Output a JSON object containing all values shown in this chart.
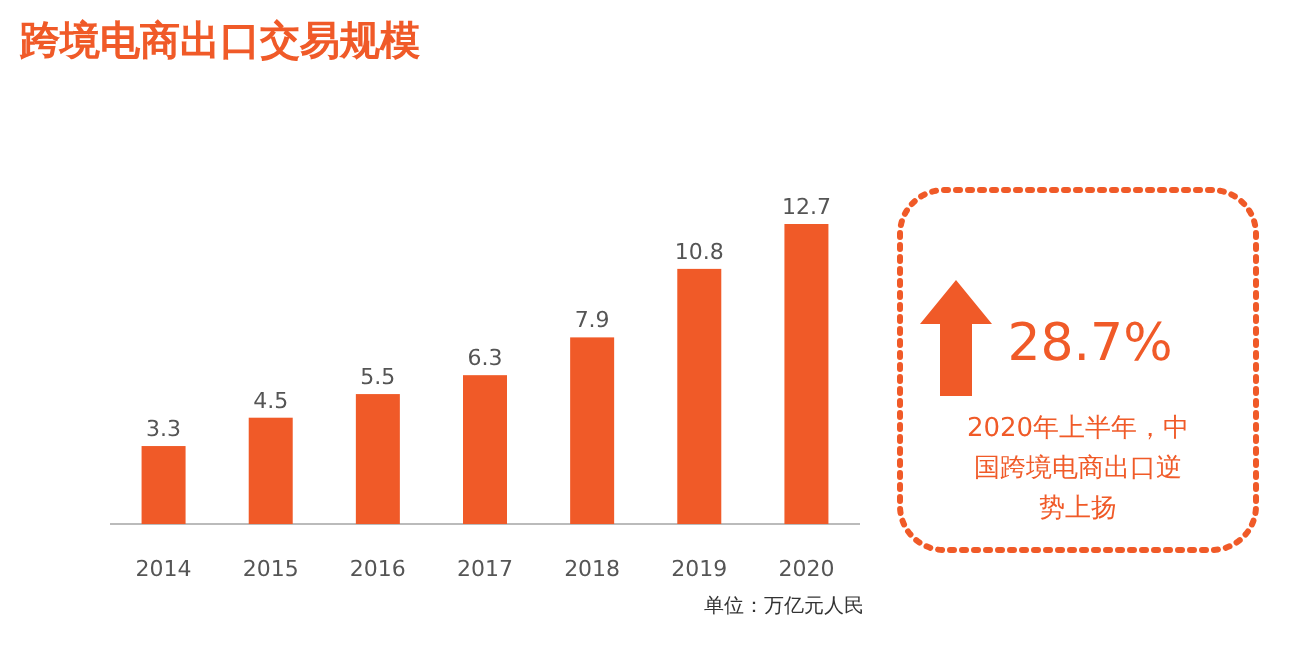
{
  "chart_data": {
    "type": "bar",
    "title": "跨境电商出口交易规模",
    "categories": [
      "2014",
      "2015",
      "2016",
      "2017",
      "2018",
      "2019",
      "2020"
    ],
    "values": [
      3.3,
      4.5,
      5.5,
      6.3,
      7.9,
      10.8,
      12.7
    ],
    "color": "#f05a28",
    "data_labels": true,
    "annotations": [
      "28.7%",
      "2020年上半年，中国跨境电商出口逆势上扬",
      "单位：万亿元人民"
    ]
  }
}
